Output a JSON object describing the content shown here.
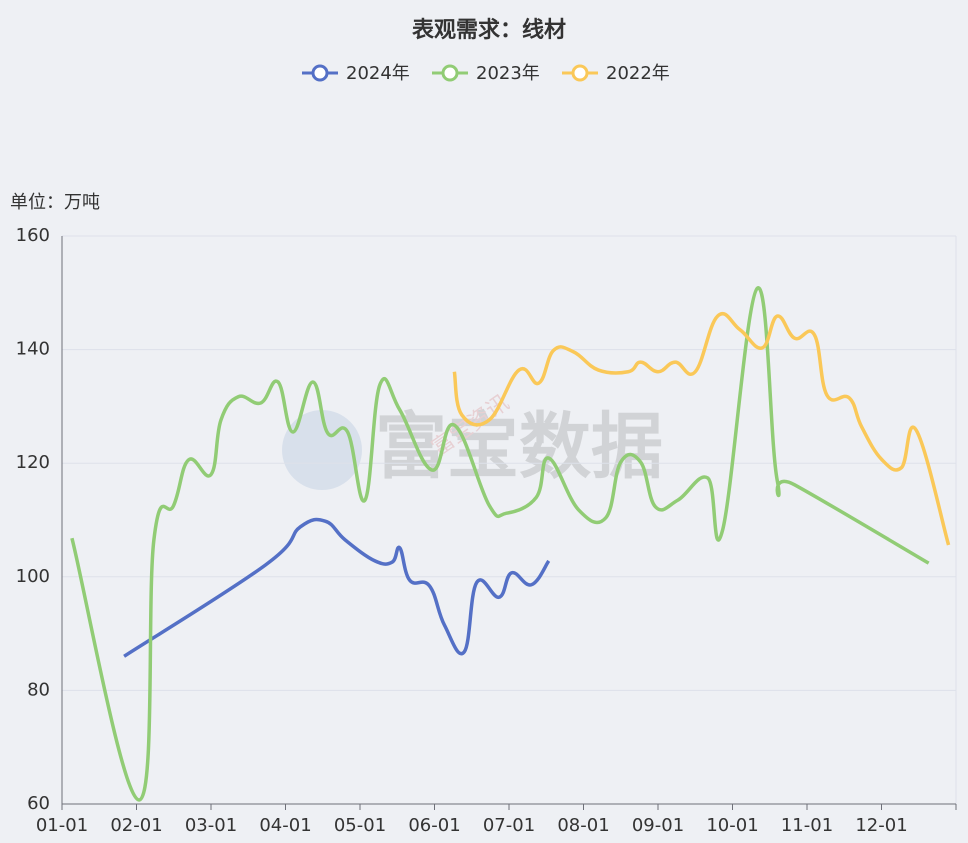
{
  "chart_data": {
    "type": "line",
    "title": "表观需求：线材",
    "y_label": "单位：万吨",
    "watermark": "富宝数据",
    "watermark_small": "富宝资讯",
    "ylim": [
      60,
      160
    ],
    "yticks": [
      60,
      80,
      100,
      120,
      140,
      160
    ],
    "grid": true,
    "xticks": [
      "01-01",
      "02-01",
      "03-01",
      "04-01",
      "05-01",
      "06-01",
      "07-01",
      "08-01",
      "09-01",
      "10-01",
      "11-01",
      "12-01"
    ],
    "series": [
      {
        "name": "2024年",
        "color": "#5470c6",
        "x": [
          "01-26",
          "03-23",
          "04-07",
          "04-17",
          "04-25",
          "05-07",
          "05-14",
          "05-17",
          "05-21",
          "05-29",
          "06-05",
          "06-13",
          "06-18",
          "06-27",
          "07-02",
          "07-10",
          "07-17"
        ],
        "values": [
          86.0,
          102.1,
          108.8,
          109.8,
          106.5,
          102.8,
          102.6,
          105.1,
          99.4,
          98.4,
          91.5,
          86.8,
          99.0,
          96.4,
          100.7,
          98.6,
          102.8
        ]
      },
      {
        "name": "2023年",
        "color": "#91cc75",
        "x": [
          "01-05",
          "02-02",
          "02-08",
          "02-16",
          "02-22",
          "03-01",
          "03-05",
          "03-12",
          "03-21",
          "03-28",
          "04-04",
          "04-12",
          "04-18",
          "04-26",
          "05-03",
          "05-09",
          "05-17",
          "05-30",
          "06-09",
          "06-23",
          "06-30",
          "07-12",
          "07-17",
          "07-29",
          "08-10",
          "08-16",
          "08-24",
          "08-30",
          "09-09",
          "09-21",
          "09-27",
          "10-11",
          "10-19",
          "10-26",
          "12-20"
        ],
        "values": [
          106.8,
          60.7,
          106.5,
          112.6,
          120.6,
          118.0,
          127.6,
          131.7,
          130.6,
          134.3,
          125.5,
          134.3,
          125.3,
          125.5,
          113.5,
          133.8,
          129.4,
          118.8,
          126.7,
          112.6,
          111.2,
          114.0,
          120.9,
          111.8,
          110.4,
          120.2,
          120.2,
          112.3,
          113.5,
          117.4,
          108.2,
          150.8,
          117.0,
          116.2,
          102.4
        ]
      },
      {
        "name": "2022年",
        "color": "#fac858",
        "x": [
          "06-09",
          "06-12",
          "06-23",
          "07-05",
          "07-13",
          "07-19",
          "07-27",
          "08-07",
          "08-19",
          "08-24",
          "09-01",
          "09-08",
          "09-16",
          "09-25",
          "10-04",
          "10-13",
          "10-19",
          "10-26",
          "11-04",
          "11-09",
          "11-18",
          "11-23",
          "12-01",
          "12-09",
          "12-15",
          "12-28"
        ],
        "values": [
          136.1,
          128.5,
          127.6,
          136.4,
          134.1,
          139.9,
          139.6,
          136.4,
          136.1,
          137.8,
          136.1,
          137.8,
          136.1,
          145.9,
          143.5,
          140.3,
          145.9,
          142.0,
          142.6,
          132.0,
          131.5,
          126.4,
          120.7,
          119.2,
          125.8,
          105.6
        ]
      }
    ]
  }
}
